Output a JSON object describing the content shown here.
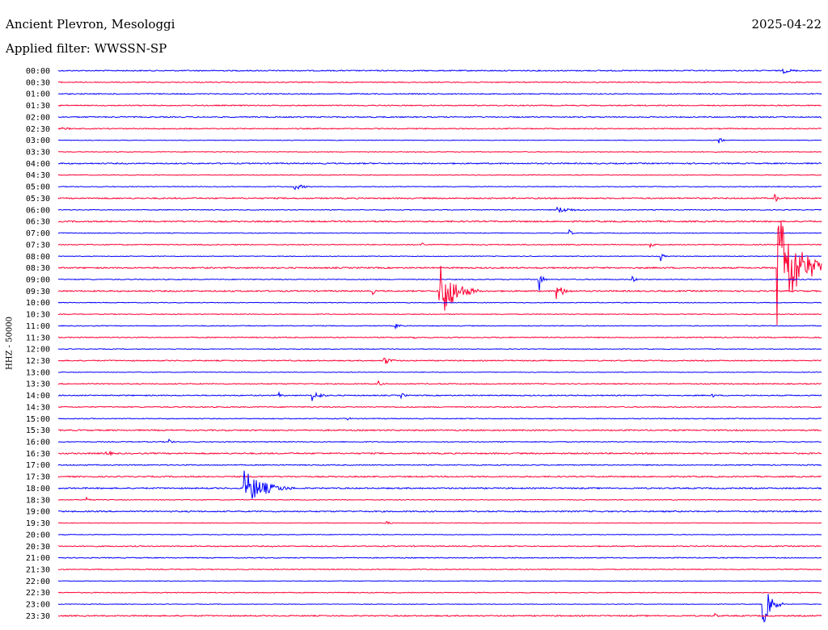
{
  "header": {
    "station": "Ancient Plevron, Mesologgi",
    "date": "2025-04-22",
    "filter": "Applied filter: WWSSN-SP"
  },
  "channel_label": "HHZ - 50000",
  "colors": {
    "odd": "#0000ff",
    "even": "#ff0033"
  },
  "chart_data": {
    "type": "helicorder",
    "ylabel": "HHZ - 50000",
    "row_labels": [
      "00:00",
      "00:30",
      "01:00",
      "01:30",
      "02:00",
      "02:30",
      "03:00",
      "03:30",
      "04:00",
      "04:30",
      "05:00",
      "05:30",
      "06:00",
      "06:30",
      "07:00",
      "07:30",
      "08:00",
      "08:30",
      "09:00",
      "09:30",
      "10:00",
      "10:30",
      "11:00",
      "11:30",
      "12:00",
      "12:30",
      "13:00",
      "13:30",
      "14:00",
      "14:30",
      "15:00",
      "15:30",
      "16:00",
      "16:30",
      "17:00",
      "17:30",
      "18:00",
      "18:30",
      "19:00",
      "19:30",
      "20:00",
      "20:30",
      "21:00",
      "21:30",
      "22:00",
      "22:30",
      "23:00",
      "23:30"
    ],
    "row_minutes": 30,
    "events": [
      {
        "row": 0,
        "minute": 28.5,
        "amp": 0.4,
        "dur": 1.3
      },
      {
        "row": 4,
        "minute": 30,
        "amp": 0.3,
        "dur": 0.5
      },
      {
        "row": 5,
        "minute": 0.2,
        "amp": 0.2,
        "dur": 1.3
      },
      {
        "row": 6,
        "minute": 26,
        "amp": 0.6,
        "dur": 0.3
      },
      {
        "row": 10,
        "minute": 9.3,
        "amp": 0.5,
        "dur": 1.0
      },
      {
        "row": 11,
        "minute": 28.2,
        "amp": 0.6,
        "dur": 0.3
      },
      {
        "row": 12,
        "minute": 19.6,
        "amp": 0.5,
        "dur": 1.8
      },
      {
        "row": 14,
        "minute": 20.1,
        "amp": 0.6,
        "dur": 0.3
      },
      {
        "row": 15,
        "minute": 14.3,
        "amp": 0.5,
        "dur": 0.3
      },
      {
        "row": 15,
        "minute": 23.3,
        "amp": 0.6,
        "dur": 0.3
      },
      {
        "row": 16,
        "minute": 23.7,
        "amp": 0.6,
        "dur": 0.3
      },
      {
        "row": 17,
        "minute": 28.3,
        "amp": 10.0,
        "dur": 2.0
      },
      {
        "row": 18,
        "minute": 18.9,
        "amp": 2.0,
        "dur": 0.3
      },
      {
        "row": 18,
        "minute": 22.6,
        "amp": 0.6,
        "dur": 0.3
      },
      {
        "row": 19,
        "minute": 15.0,
        "amp": 5.0,
        "dur": 1.5
      },
      {
        "row": 19,
        "minute": 19.6,
        "amp": 1.2,
        "dur": 0.8
      },
      {
        "row": 19,
        "minute": 12.4,
        "amp": 0.4,
        "dur": 0.3
      },
      {
        "row": 22,
        "minute": 13.3,
        "amp": 0.4,
        "dur": 0.5
      },
      {
        "row": 23,
        "minute": 14.0,
        "amp": 0.3,
        "dur": 0.3
      },
      {
        "row": 25,
        "minute": 12.8,
        "amp": 0.7,
        "dur": 0.8
      },
      {
        "row": 27,
        "minute": 12.6,
        "amp": 0.5,
        "dur": 0.3
      },
      {
        "row": 28,
        "minute": 8.7,
        "amp": 0.4,
        "dur": 0.4
      },
      {
        "row": 28,
        "minute": 10.0,
        "amp": 0.9,
        "dur": 0.8
      },
      {
        "row": 28,
        "minute": 13.5,
        "amp": 0.4,
        "dur": 0.5
      },
      {
        "row": 28,
        "minute": 25.7,
        "amp": 0.4,
        "dur": 0.3
      },
      {
        "row": 30,
        "minute": 11.4,
        "amp": 0.3,
        "dur": 0.3
      },
      {
        "row": 32,
        "minute": 4.4,
        "amp": 0.4,
        "dur": 0.3
      },
      {
        "row": 33,
        "minute": 1.9,
        "amp": 0.5,
        "dur": 0.6
      },
      {
        "row": 36,
        "minute": 7.3,
        "amp": 3.0,
        "dur": 2.0
      },
      {
        "row": 37,
        "minute": 1.1,
        "amp": 0.5,
        "dur": 0.5
      },
      {
        "row": 39,
        "minute": 12.9,
        "amp": 0.3,
        "dur": 0.5
      },
      {
        "row": 46,
        "minute": 27.7,
        "amp": 3.5,
        "dur": 0.8
      },
      {
        "row": 47,
        "minute": 25.8,
        "amp": 0.5,
        "dur": 0.3
      }
    ]
  }
}
